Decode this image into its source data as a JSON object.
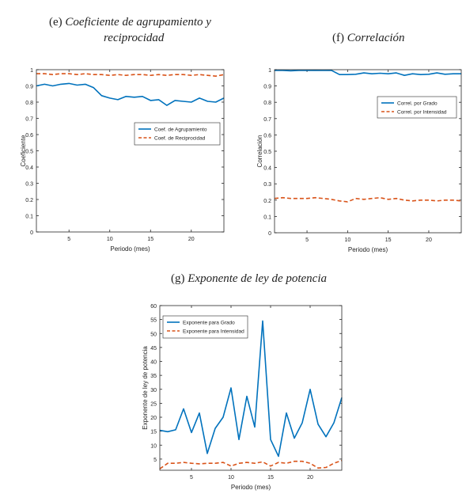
{
  "captions": {
    "e": {
      "letter": "(e)",
      "line1": "Coeficiente de agrupamiento y",
      "line2": "reciprocidad"
    },
    "f": {
      "letter": "(f)",
      "line1": "Correlación"
    },
    "g": {
      "letter": "(g)",
      "line1": "Exponente de ley de potencia"
    }
  },
  "colors": {
    "blue": "#0072BD",
    "orange": "#D95319"
  },
  "chart_data": [
    {
      "id": "e",
      "type": "line",
      "xlabel": "Periodo (mes)",
      "ylabel": "Coeficiente",
      "xlim": [
        1,
        24
      ],
      "ylim": [
        0,
        1
      ],
      "xticks": [
        5,
        10,
        15,
        20
      ],
      "yticks": [
        0,
        0.1,
        0.2,
        0.3,
        0.4,
        0.5,
        0.6,
        0.7,
        0.8,
        0.9,
        1
      ],
      "ytick_labels": [
        "0",
        "0.1",
        "0.2",
        "0.3",
        "0.4",
        "0.5",
        "0.6",
        "0.7",
        "0.8",
        "0.9",
        "1"
      ],
      "legend_position": "center-right",
      "series": [
        {
          "name": "Coef. de Agrupamiento",
          "style": "solid",
          "color": "#0072BD",
          "x": [
            1,
            2,
            3,
            4,
            5,
            6,
            7,
            8,
            9,
            10,
            11,
            12,
            13,
            14,
            15,
            16,
            17,
            18,
            19,
            20,
            21,
            22,
            23,
            24
          ],
          "y": [
            0.9,
            0.91,
            0.9,
            0.91,
            0.915,
            0.905,
            0.91,
            0.89,
            0.84,
            0.825,
            0.815,
            0.835,
            0.83,
            0.835,
            0.81,
            0.815,
            0.78,
            0.81,
            0.805,
            0.8,
            0.825,
            0.805,
            0.8,
            0.825
          ]
        },
        {
          "name": "Coef. de Reciprocidad",
          "style": "dashed",
          "color": "#D95319",
          "x": [
            1,
            2,
            3,
            4,
            5,
            6,
            7,
            8,
            9,
            10,
            11,
            12,
            13,
            14,
            15,
            16,
            17,
            18,
            19,
            20,
            21,
            22,
            23,
            24
          ],
          "y": [
            0.975,
            0.975,
            0.97,
            0.975,
            0.975,
            0.97,
            0.975,
            0.97,
            0.97,
            0.965,
            0.97,
            0.965,
            0.97,
            0.97,
            0.965,
            0.97,
            0.965,
            0.97,
            0.97,
            0.965,
            0.97,
            0.965,
            0.96,
            0.97
          ]
        }
      ]
    },
    {
      "id": "f",
      "type": "line",
      "xlabel": "Periodo (mes)",
      "ylabel": "Correlación",
      "xlim": [
        1,
        24
      ],
      "ylim": [
        0,
        1
      ],
      "xticks": [
        5,
        10,
        15,
        20
      ],
      "yticks": [
        0,
        0.1,
        0.2,
        0.3,
        0.4,
        0.5,
        0.6,
        0.7,
        0.8,
        0.9,
        1
      ],
      "ytick_labels": [
        "0",
        "0.1",
        "0.2",
        "0.3",
        "0.4",
        "0.5",
        "0.6",
        "0.7",
        "0.8",
        "0.9",
        "1"
      ],
      "legend_position": "upper-right",
      "series": [
        {
          "name": "Correl. por Grado",
          "style": "solid",
          "color": "#0072BD",
          "x": [
            1,
            2,
            3,
            4,
            5,
            6,
            7,
            8,
            9,
            10,
            11,
            12,
            13,
            14,
            15,
            16,
            17,
            18,
            19,
            20,
            21,
            22,
            23,
            24
          ],
          "y": [
            0.995,
            0.995,
            0.993,
            0.995,
            0.995,
            0.996,
            0.995,
            0.996,
            0.97,
            0.97,
            0.972,
            0.98,
            0.975,
            0.978,
            0.975,
            0.98,
            0.965,
            0.975,
            0.97,
            0.972,
            0.98,
            0.972,
            0.975,
            0.975
          ]
        },
        {
          "name": "Correl. por Intensidad",
          "style": "dashed",
          "color": "#D95319",
          "x": [
            1,
            2,
            3,
            4,
            5,
            6,
            7,
            8,
            9,
            10,
            11,
            12,
            13,
            14,
            15,
            16,
            17,
            18,
            19,
            20,
            21,
            22,
            23,
            24
          ],
          "y": [
            0.21,
            0.215,
            0.21,
            0.21,
            0.21,
            0.215,
            0.21,
            0.205,
            0.195,
            0.19,
            0.21,
            0.205,
            0.21,
            0.215,
            0.205,
            0.21,
            0.2,
            0.195,
            0.2,
            0.2,
            0.195,
            0.2,
            0.2,
            0.195
          ]
        }
      ]
    },
    {
      "id": "g",
      "type": "line",
      "xlabel": "Periodo (mes)",
      "ylabel": "Exponente de ley de potencia",
      "xlim": [
        1,
        24
      ],
      "ylim": [
        1,
        60
      ],
      "xticks": [
        5,
        10,
        15,
        20
      ],
      "yticks": [
        5,
        10,
        15,
        20,
        25,
        30,
        35,
        40,
        45,
        50,
        55,
        60
      ],
      "ytick_labels": [
        "5",
        "10",
        "15",
        "20",
        "25",
        "30",
        "35",
        "40",
        "45",
        "50",
        "55",
        "60"
      ],
      "legend_position": "upper-left",
      "series": [
        {
          "name": "Exponente para Grado",
          "style": "solid",
          "color": "#0072BD",
          "x": [
            1,
            2,
            3,
            4,
            5,
            6,
            7,
            8,
            9,
            10,
            11,
            12,
            13,
            14,
            15,
            16,
            17,
            18,
            19,
            20,
            21,
            22,
            23,
            24
          ],
          "y": [
            15.3,
            14.8,
            15.5,
            23.0,
            14.5,
            21.5,
            7.0,
            16.0,
            20.0,
            30.5,
            12.0,
            27.5,
            16.5,
            54.5,
            12.0,
            6.0,
            21.5,
            12.5,
            18.0,
            30.0,
            17.5,
            13.0,
            18.0,
            27.0
          ]
        },
        {
          "name": "Exponente para Intensidad",
          "style": "dashed",
          "color": "#D95319",
          "x": [
            1,
            2,
            3,
            4,
            5,
            6,
            7,
            8,
            9,
            10,
            11,
            12,
            13,
            14,
            15,
            16,
            17,
            18,
            19,
            20,
            21,
            22,
            23,
            24
          ],
          "y": [
            1.5,
            3.5,
            3.5,
            3.8,
            3.5,
            3.3,
            3.5,
            3.5,
            3.8,
            2.5,
            3.5,
            3.8,
            3.5,
            4.0,
            2.5,
            3.8,
            3.5,
            4.2,
            4.2,
            3.5,
            1.8,
            2.0,
            3.5,
            4.5
          ]
        }
      ]
    }
  ]
}
